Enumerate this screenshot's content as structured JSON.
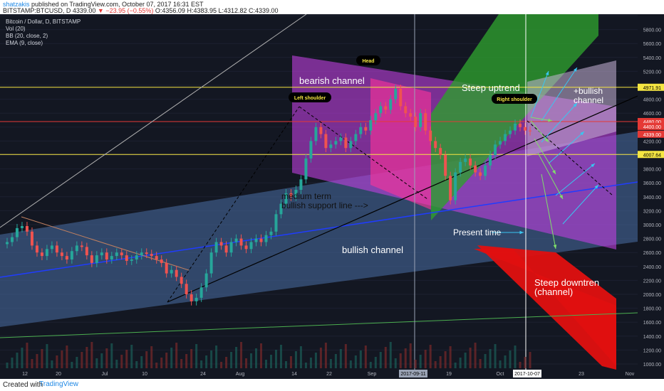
{
  "header": {
    "author": "shatzakis",
    "published": "published on TradingView.com, October 07, 2017 16:31 EST",
    "symbol": "BITSTAMP:BTCUSD, D",
    "last": "4339.00",
    "change": "▼ −23.95 (−0.55%)",
    "ohlc": "O:4356.09 H:4383.95 L:4312.82 C:4339.00"
  },
  "indicators": {
    "title": "Bitcoin / Dollar, D, BITSTAMP",
    "vol": "Vol (20)",
    "bb": "BB (20, close, 2)",
    "ema": "EMA (9, close)"
  },
  "footer": {
    "created": "Created with",
    "logo": "TradingView"
  },
  "chart_data": {
    "type": "candlestick",
    "x_labels": [
      "12",
      "20",
      "Jul",
      "10",
      "24",
      "Aug",
      "14",
      "22",
      "Sep",
      "2017-09-11",
      "19",
      "Oct",
      "2017-10-07",
      "23",
      "Nov"
    ],
    "y_ticks": [
      6000,
      5800,
      5600,
      5400,
      5200,
      5000,
      4800,
      4600,
      4400,
      4200,
      4000,
      3800,
      3600,
      3400,
      3200,
      3000,
      2800,
      2600,
      2400,
      2200,
      2000,
      1800,
      1600,
      1400,
      1200,
      1000
    ],
    "ylim": [
      1000,
      6000
    ],
    "price_labels": [
      {
        "value": "4971.91",
        "color": "#f5e642"
      },
      {
        "value": "4480.00",
        "color": "#e53935"
      },
      {
        "value": "4400.00",
        "color": "#e53935"
      },
      {
        "value": "4339.00",
        "color": "#e53935"
      },
      {
        "value": "4007.64",
        "color": "#f5e642"
      }
    ],
    "horizontal_lines": [
      {
        "value": 4971.91,
        "color": "#f5e642"
      },
      {
        "value": 4480,
        "color": "#e53935"
      },
      {
        "value": 4007.64,
        "color": "#f5e642"
      }
    ],
    "closes": [
      2750,
      2820,
      2950,
      2980,
      2900,
      2700,
      2600,
      2550,
      2650,
      2700,
      2600,
      2550,
      2500,
      2620,
      2700,
      2680,
      2560,
      2450,
      2560,
      2600,
      2500,
      2550,
      2600,
      2560,
      2480,
      2500,
      2560,
      2600,
      2580,
      2550,
      2500,
      2450,
      2300,
      2350,
      2250,
      2150,
      2000,
      1900,
      1950,
      2100,
      2300,
      2600,
      2750,
      2700,
      2600,
      2750,
      2800,
      2700,
      2650,
      2750,
      2800,
      2750,
      2850,
      2900,
      3150,
      3300,
      3450,
      3400,
      3500,
      3650,
      3950,
      4200,
      4400,
      4300,
      4100,
      4150,
      4200,
      4250,
      4100,
      4200,
      4300,
      4400,
      4350,
      4500,
      4600,
      4700,
      4650,
      4800,
      4950,
      4700,
      4600,
      4550,
      4400,
      4600,
      4350,
      4200,
      4100,
      4000,
      3700,
      3350,
      3750,
      3900,
      3950,
      3850,
      3750,
      3700,
      3850,
      4000,
      4150,
      4200,
      4300,
      4350,
      4450,
      4400,
      4350,
      4339
    ],
    "annotations": [
      "bearish channel",
      "Steep uptrend",
      "+bullish channel",
      "medium term bullish support line --->",
      "Present time",
      "bullish channel",
      "Steep downtrend (channel)"
    ],
    "callouts": [
      "Head",
      "Left shoulder",
      "Right shoulder"
    ],
    "channels": [
      {
        "label": "bearish channel",
        "color": "#e040fb"
      },
      {
        "label": "Steep uptrend",
        "color": "#2e9e2e"
      },
      {
        "label": "+bullish channel",
        "color": "#c8b4d8"
      },
      {
        "label": "bullish channel",
        "color": "#4a6fa5"
      },
      {
        "label": "Steep downtrend (channel)",
        "color": "#e01010"
      }
    ]
  }
}
